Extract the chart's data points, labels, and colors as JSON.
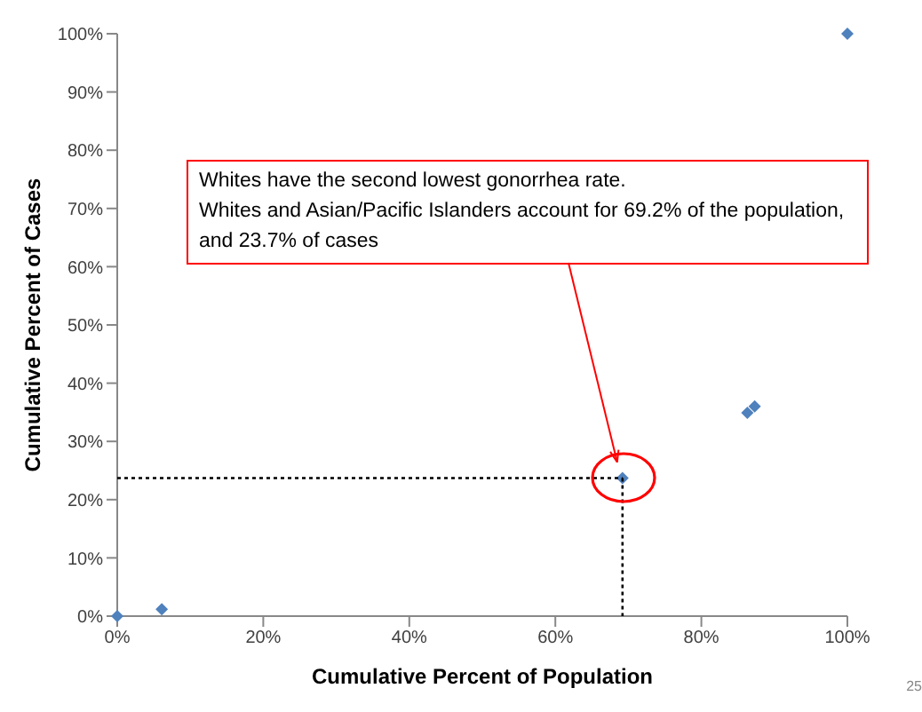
{
  "chart_data": {
    "type": "scatter",
    "xlabel": "Cumulative Percent of Population",
    "ylabel": "Cumulative Percent of Cases",
    "series": [
      {
        "color": "#4f81bd",
        "marker": "diamond",
        "x": [
          0,
          6.1,
          69.2,
          86.3,
          87.3,
          100
        ],
        "values": [
          0,
          1.2,
          23.7,
          34.9,
          36.0,
          100
        ]
      },
      {
        "type": "line",
        "color": "#000000",
        "line_style": "dotted",
        "x": [
          0,
          69.2
        ],
        "values": [
          23.7,
          23.7
        ]
      },
      {
        "type": "line",
        "color": "#000000",
        "line_style": "dotted",
        "x": [
          69.2,
          69.2
        ],
        "values": [
          23.7,
          0
        ]
      }
    ],
    "xlim": [
      0,
      100
    ],
    "ylim": [
      0,
      100
    ],
    "xticks": [
      {
        "value": 0,
        "label": "0%"
      },
      {
        "value": 20,
        "label": "20%"
      },
      {
        "value": 40,
        "label": "40%"
      },
      {
        "value": 60,
        "label": "60%"
      },
      {
        "value": 80,
        "label": "80%"
      },
      {
        "value": 100,
        "label": "100%"
      }
    ],
    "yticks": [
      {
        "value": 0,
        "label": "0%"
      },
      {
        "value": 10,
        "label": "10%"
      },
      {
        "value": 20,
        "label": "20%"
      },
      {
        "value": 30,
        "label": "30%"
      },
      {
        "value": 40,
        "label": "40%"
      },
      {
        "value": 50,
        "label": "50%"
      },
      {
        "value": 60,
        "label": "60%"
      },
      {
        "value": 70,
        "label": "70%"
      },
      {
        "value": 80,
        "label": "80%"
      },
      {
        "value": 90,
        "label": "90%"
      },
      {
        "value": 100,
        "label": "100%"
      }
    ],
    "grid": false,
    "annotations": [
      "Whites have the second lowest gonorrhea rate.\nWhites and Asian/Pacific Islanders account for 69.2% of the population, and 23.7% of cases",
      "25"
    ]
  }
}
